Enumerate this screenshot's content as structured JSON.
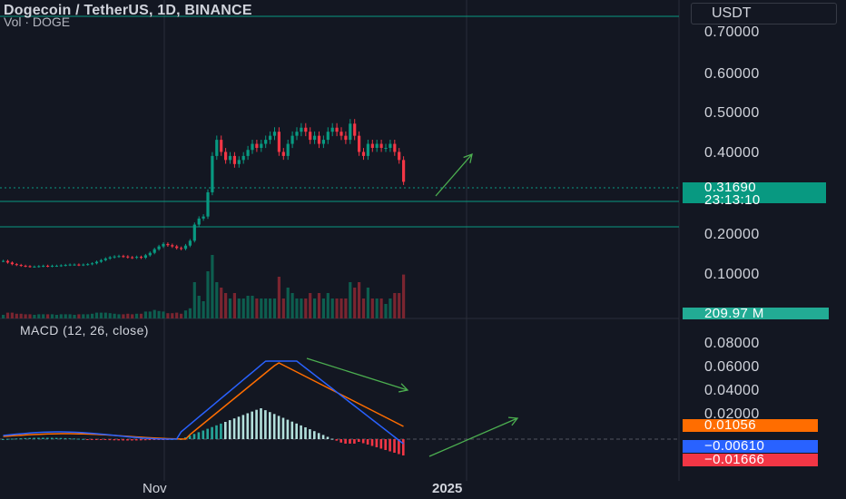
{
  "header": {
    "symbol_title": "Dogecoin / TetherUS, 1D, BINANCE",
    "volume_label": "Vol · DOGE",
    "currency_button": "USDT"
  },
  "price_axis": [
    "0.70000",
    "0.60000",
    "0.50000",
    "0.40000",
    "0.20000",
    "0.10000"
  ],
  "last_price": {
    "price": "0.31690",
    "countdown": "23:13:10",
    "color": "#089981"
  },
  "volume_tag": {
    "value": "209.97 M",
    "color": "#22ab94"
  },
  "macd": {
    "title": "MACD (12, 26, close)",
    "axis": [
      "0.08000",
      "0.06000",
      "0.04000",
      "0.02000"
    ],
    "signal_value": "0.01056",
    "macd_value": "−0.00610",
    "hist_value": "−0.01666",
    "signal_color": "#ff6d00",
    "macd_color": "#2962ff",
    "hist_color": "#f23645",
    "hist_pos_color": "#26a69a",
    "hist_pos_fade_color": "#b2dfdb"
  },
  "time_axis": {
    "nov": "Nov",
    "year": "2025"
  },
  "colors": {
    "up": "#089981",
    "down": "#f23645",
    "background": "#131722",
    "arrow": "#4caf50"
  },
  "icons": [
    "uptrend-arrow-icon",
    "trendline-arrow-icon"
  ]
}
